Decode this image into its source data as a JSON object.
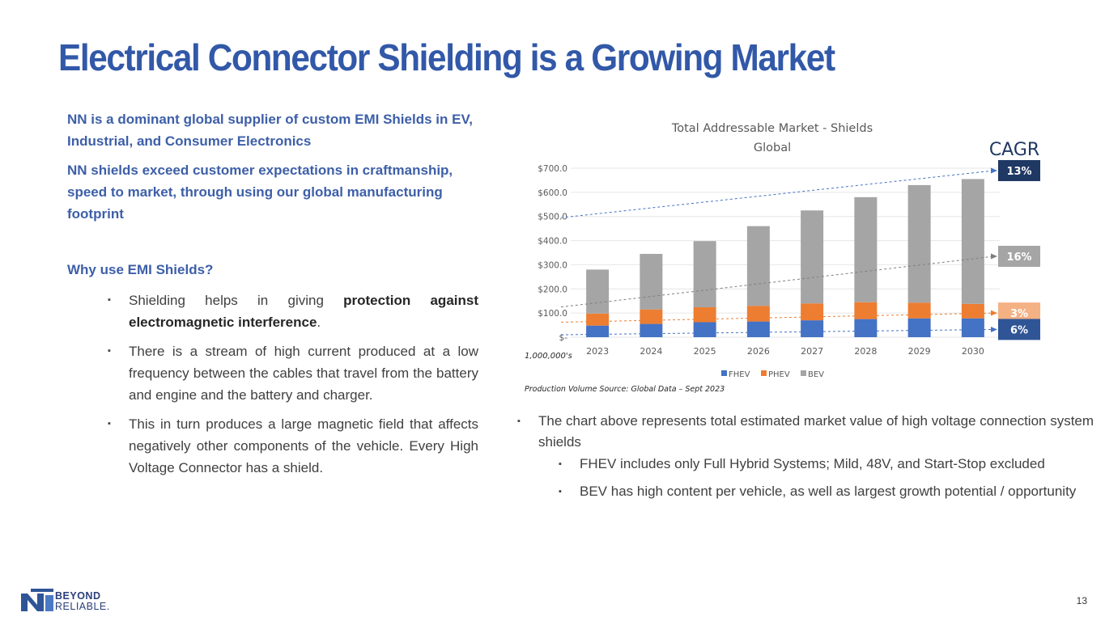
{
  "title": "Electrical Connector Shielding is a Growing Market",
  "intro": {
    "line1": "NN is a dominant global supplier of custom EMI Shields in EV, Industrial, and Consumer Electronics",
    "line2": "NN shields exceed customer expectations in craftmanship, speed to market, through using our global manufacturing footprint"
  },
  "why_heading": "Why use EMI Shields?",
  "why_bullets": {
    "b1_pre": "Shielding helps in giving ",
    "b1_bold": "protection against electromagnetic interference",
    "b1_post": ".",
    "b2": "There is a stream of high current produced at a low frequency between the cables that travel from the battery and engine and the battery and charger.",
    "b3": "This in turn produces a large magnetic field that affects negatively other components of the vehicle. Every High Voltage Connector has a shield."
  },
  "chart_notes": {
    "main": "The chart above represents total estimated market value of high voltage connection system shields",
    "sub1": "FHEV includes only Full Hybrid Systems;  Mild, 48V, and Start-Stop excluded",
    "sub2": "BEV has high content per vehicle, as well as largest growth potential / opportunity"
  },
  "chart_data": {
    "type": "bar",
    "stacked": true,
    "title": "Total Addressable Market - Shields",
    "subtitle": "Global",
    "categories": [
      "2023",
      "2024",
      "2025",
      "2026",
      "2027",
      "2028",
      "2029",
      "2030"
    ],
    "series": [
      {
        "name": "FHEV",
        "color": "#4472c4",
        "values": [
          48,
          55,
          62,
          65,
          70,
          75,
          78,
          78
        ]
      },
      {
        "name": "PHEV",
        "color": "#ed7d31",
        "values": [
          50,
          60,
          62,
          65,
          70,
          70,
          65,
          60
        ]
      },
      {
        "name": "BEV",
        "color": "#a5a5a5",
        "values": [
          182,
          230,
          274,
          330,
          385,
          435,
          487,
          517
        ]
      }
    ],
    "y_ticks": [
      "$-",
      "$100.0",
      "$200.0",
      "$300.0",
      "$400.0",
      "$500.0",
      "$600.0",
      "$700.0"
    ],
    "ylim": [
      0,
      700
    ],
    "units_label": "1,000,000's",
    "source": "Production Volume Source: Global Data – Sept 2023",
    "cagr_title": "CAGR",
    "cagr": [
      {
        "label": "13%",
        "series": "Total",
        "color": "#1f3864",
        "start": 495,
        "end": 690,
        "line_color": "#4472c4"
      },
      {
        "label": "16%",
        "series": "BEV",
        "color": "#a5a5a5",
        "start": 125,
        "end": 335,
        "line_color": "#7f7f7f"
      },
      {
        "label": "3%",
        "series": "PHEV",
        "color": "#f4b183",
        "start": 62,
        "end": 100,
        "line_color": "#ed7d31"
      },
      {
        "label": "6%",
        "series": "FHEV",
        "color": "#2f5597",
        "start": 10,
        "end": 32,
        "line_color": "#4472c4"
      }
    ]
  },
  "logo": {
    "line1": "BEYOND",
    "line2": "RELIABLE."
  },
  "page_number": "13"
}
